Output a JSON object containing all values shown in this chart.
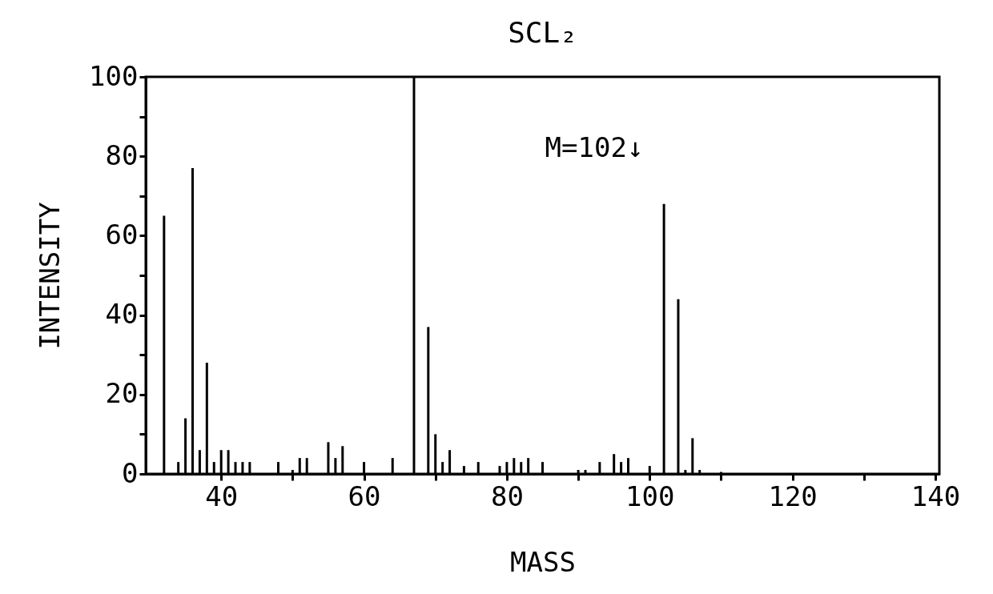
{
  "chart_data": {
    "type": "bar",
    "title": "SCL₂",
    "xlabel": "MASS",
    "ylabel": "INTENSITY",
    "x": [
      32,
      34,
      35,
      36,
      37,
      38,
      39,
      40,
      41,
      42,
      43,
      44,
      48,
      50,
      51,
      52,
      55,
      56,
      57,
      60,
      64,
      67,
      69,
      70,
      71,
      72,
      74,
      76,
      79,
      80,
      81,
      82,
      83,
      85,
      90,
      91,
      93,
      95,
      96,
      97,
      100,
      102,
      104,
      105,
      106,
      107,
      110
    ],
    "values": [
      65,
      3,
      14,
      77,
      6,
      28,
      3,
      6,
      6,
      3,
      3,
      3,
      3,
      1,
      4,
      4,
      8,
      4,
      7,
      3,
      4,
      100,
      37,
      10,
      3,
      6,
      2,
      3,
      2,
      3,
      4,
      3,
      4,
      3,
      1,
      1,
      3,
      5,
      3,
      4,
      2,
      68,
      44,
      1,
      9,
      1,
      0.5
    ],
    "color": "#000000",
    "xlim": [
      30,
      140
    ],
    "xticks": [
      40,
      {
        "value": 50,
        "label": null
      },
      60,
      {
        "value": 70,
        "label": null
      },
      80,
      {
        "value": 90,
        "label": null
      },
      100,
      {
        "value": 110,
        "label": null
      },
      120,
      {
        "value": 130,
        "label": null
      },
      140
    ],
    "ylim": [
      0,
      100
    ],
    "yticks": [
      0,
      {
        "value": 10,
        "label": null
      },
      20,
      {
        "value": 30,
        "label": null
      },
      40,
      {
        "value": 50,
        "label": null
      },
      60,
      {
        "value": 70,
        "label": null
      },
      80,
      {
        "value": 90,
        "label": null
      },
      100
    ],
    "grid": false,
    "annotations": [
      "M=102↓"
    ]
  }
}
